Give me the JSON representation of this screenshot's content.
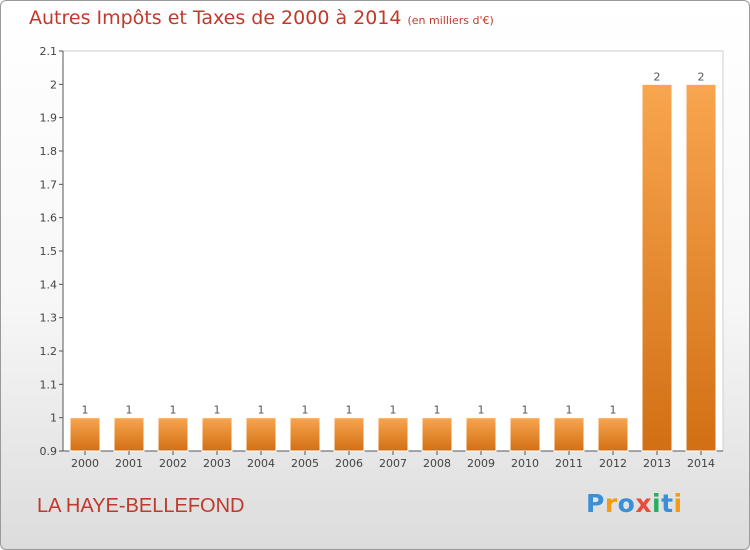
{
  "header": {
    "title": "Autres Impôts et Taxes de 2000 à 2014",
    "subtitle": "(en milliers d'€)"
  },
  "footer": {
    "city": "LA HAYE-BELLEFOND",
    "brand": [
      "P",
      "r",
      "o",
      "x",
      "i",
      "t",
      "i"
    ]
  },
  "colors": {
    "title": "#c0392b",
    "bar_light": "#f8a64f",
    "bar_dark": "#d26f14",
    "brand": [
      "#3a8fd8",
      "#f39c12",
      "#3a8fd8",
      "#e74c3c",
      "#27ae60",
      "#3a8fd8",
      "#f39c12"
    ]
  },
  "chart_data": {
    "type": "bar",
    "title": "Autres Impôts et Taxes de 2000 à 2014",
    "subtitle": "(en milliers d'€)",
    "categories": [
      "2000",
      "2001",
      "2002",
      "2003",
      "2004",
      "2005",
      "2006",
      "2007",
      "2008",
      "2009",
      "2010",
      "2011",
      "2012",
      "2013",
      "2014"
    ],
    "values": [
      1,
      1,
      1,
      1,
      1,
      1,
      1,
      1,
      1,
      1,
      1,
      1,
      1,
      2,
      2
    ],
    "data_labels": [
      "1",
      "1",
      "1",
      "1",
      "1",
      "1",
      "1",
      "1",
      "1",
      "1",
      "1",
      "1",
      "1",
      "2",
      "2"
    ],
    "ylim": [
      0.9,
      2.1
    ],
    "yticks": [
      0.9,
      1,
      1.1,
      1.2,
      1.3,
      1.4,
      1.5,
      1.6,
      1.7,
      1.8,
      1.9,
      2,
      2.1
    ],
    "ytick_labels": [
      "0.9",
      "1",
      "1.1",
      "1.2",
      "1.3",
      "1.4",
      "1.5",
      "1.6",
      "1.7",
      "1.8",
      "1.9",
      "2",
      "2.1"
    ],
    "xlabel": "",
    "ylabel": "",
    "grid": false,
    "legend": "none"
  }
}
